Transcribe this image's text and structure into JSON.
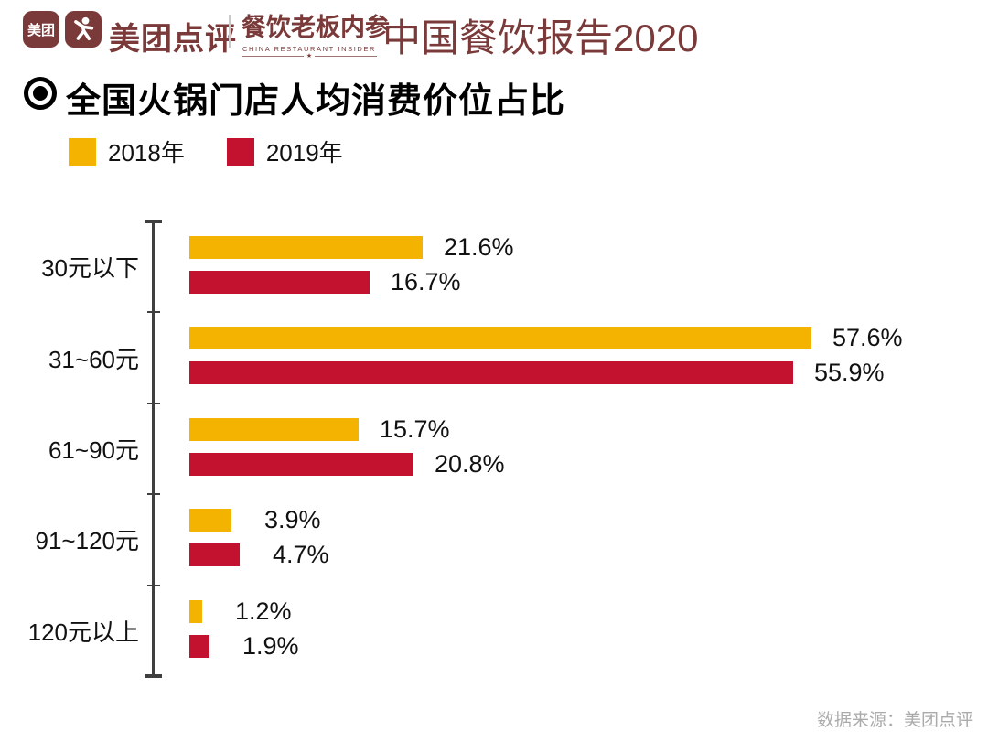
{
  "header": {
    "logo_meituan_text": "美团",
    "brand": "美团点评",
    "insider_title": "餐饮老板内参",
    "insider_subtitle": "CHINA RESTAURANT INSIDER",
    "report_title": "中国餐饮报告2020"
  },
  "chart": {
    "title": "全国火锅门店人均消费价位占比",
    "source": "数据来源：美团点评"
  },
  "chart_data": {
    "type": "bar",
    "orientation": "horizontal",
    "title": "全国火锅门店人均消费价位占比",
    "categories": [
      "30元以下",
      "31~60元",
      "61~90元",
      "91~120元",
      "120元以上"
    ],
    "series": [
      {
        "name": "2018年",
        "color": "#F5B301",
        "values": [
          21.6,
          57.6,
          15.7,
          3.9,
          1.2
        ]
      },
      {
        "name": "2019年",
        "color": "#C2122F",
        "values": [
          16.7,
          55.9,
          20.8,
          4.7,
          1.9
        ]
      }
    ],
    "value_suffix": "%",
    "xlim": [
      0,
      60
    ],
    "grid": false,
    "legend_position": "top-left"
  },
  "colors": {
    "maroon": "#7a3a3a",
    "yellow": "#F5B301",
    "red": "#C2122F",
    "axis": "#3f3f3f",
    "source_gray": "#ababab"
  }
}
